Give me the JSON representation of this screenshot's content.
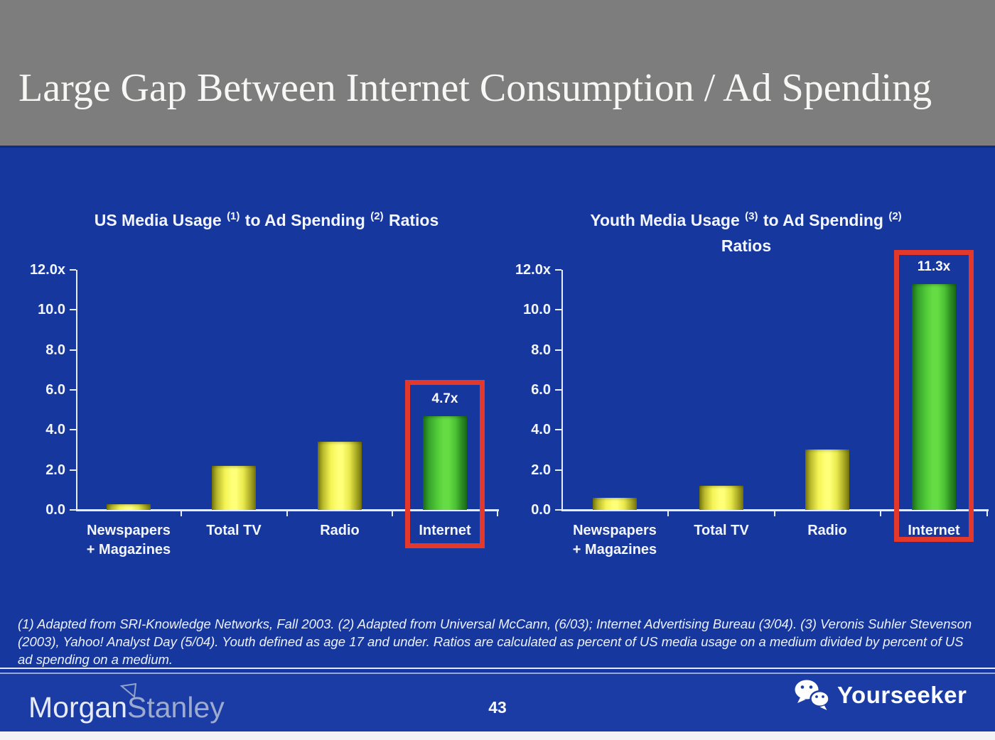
{
  "header": {
    "title": "Large Gap Between Internet Consumption / Ad Spending"
  },
  "footnote": {
    "text": "(1) Adapted from SRI-Knowledge Networks, Fall 2003.  (2) Adapted from Universal McCann, (6/03); Internet Advertising Bureau (3/04). (3) Veronis Suhler Stevenson (2003), Yahoo! Analyst Day (5/04).  Youth defined as age 17 and under.  Ratios are calculated as percent of US media usage on a medium divided by percent of US ad spending on a medium."
  },
  "footer": {
    "page_number": "43",
    "brand_part1": "Morgan",
    "brand_part2": "Stanley",
    "watermark_label": "Yourseeker",
    "watermark_icon": "wechat-icon"
  },
  "colors": {
    "header_gray": "#7D7D7D",
    "slide_blue": "#16379E",
    "footer_blue": "#1B3CA4",
    "bar_yellow": "#FFFF78",
    "bar_green": "#66DC44",
    "highlight_red": "#E2392C",
    "axis_white": "#E8EDFB"
  },
  "chart_data": [
    {
      "type": "bar",
      "name": "us-ratio-chart",
      "title_lines": [
        [
          {
            "t": "US Media Usage "
          },
          {
            "s": "(1)"
          },
          {
            "t": " to Ad Spending "
          },
          {
            "s": "(2)"
          },
          {
            "t": " Ratios"
          }
        ]
      ],
      "categories": [
        [
          "Newspapers",
          "+ Magazines"
        ],
        [
          "Total TV"
        ],
        [
          "Radio"
        ],
        [
          "Internet"
        ]
      ],
      "values": [
        0.3,
        2.2,
        3.4,
        4.7
      ],
      "bar_colors": [
        "yellow",
        "yellow",
        "yellow",
        "green"
      ],
      "value_labels": [
        null,
        null,
        null,
        "4.7x"
      ],
      "highlight_index": 3,
      "y_ticks": [
        "0.0",
        "2.0",
        "4.0",
        "6.0",
        "8.0",
        "10.0",
        "12.0x"
      ],
      "ymax": 12,
      "ytick_step": 2,
      "xlabel": "",
      "ylabel": "",
      "grid": false,
      "legend": null
    },
    {
      "type": "bar",
      "name": "youth-ratio-chart",
      "title_lines": [
        [
          {
            "t": "Youth Media Usage "
          },
          {
            "s": "(3)"
          },
          {
            "t": " to Ad Spending "
          },
          {
            "s": "(2)"
          }
        ],
        [
          {
            "t": "Ratios"
          }
        ]
      ],
      "categories": [
        [
          "Newspapers",
          "+ Magazines"
        ],
        [
          "Total TV"
        ],
        [
          "Radio"
        ],
        [
          "Internet"
        ]
      ],
      "values": [
        0.6,
        1.2,
        3.0,
        11.3
      ],
      "bar_colors": [
        "yellow",
        "yellow",
        "yellow",
        "green"
      ],
      "value_labels": [
        null,
        null,
        null,
        "11.3x"
      ],
      "highlight_index": 3,
      "y_ticks": [
        "0.0",
        "2.0",
        "4.0",
        "6.0",
        "8.0",
        "10.0",
        "12.0x"
      ],
      "ymax": 12,
      "ytick_step": 2,
      "xlabel": "",
      "ylabel": "",
      "grid": false,
      "legend": null
    }
  ]
}
